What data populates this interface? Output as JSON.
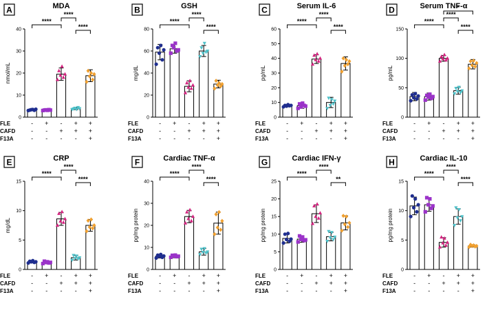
{
  "chart_data": [
    {
      "id": "A",
      "type": "bar",
      "title": "MDA",
      "ylabel": "nmol/mL",
      "ylim": [
        0,
        40
      ],
      "yticks": [
        0,
        10,
        20,
        30,
        40
      ],
      "values": [
        3.3,
        3.2,
        19.5,
        3.9,
        18.8
      ],
      "errors": [
        0.4,
        0.3,
        2.8,
        0.5,
        2.7
      ],
      "points": [
        [
          3.0,
          3.2,
          3.4,
          3.5,
          3.1,
          3.6
        ],
        [
          3.0,
          3.2,
          3.3,
          3.1,
          3.4,
          3.2
        ],
        [
          17,
          21,
          19,
          23,
          18,
          19.5
        ],
        [
          3.5,
          3.8,
          4.1,
          3.6,
          4.4,
          3.9
        ],
        [
          16,
          21,
          18.5,
          20,
          17,
          19.5
        ]
      ],
      "signif": [
        {
          "a": 0,
          "b": 2,
          "label": "****"
        },
        {
          "a": 2,
          "b": 3,
          "label": "****"
        },
        {
          "a": 3,
          "b": 4,
          "label": "****"
        }
      ]
    },
    {
      "id": "B",
      "type": "bar",
      "title": "GSH",
      "ylabel": "mg/dL",
      "ylim": [
        0,
        80
      ],
      "yticks": [
        0,
        20,
        40,
        60,
        80
      ],
      "values": [
        59,
        62,
        28,
        60,
        30
      ],
      "errors": [
        7,
        4,
        5,
        5,
        3.5
      ],
      "points": [
        [
          48,
          63,
          58,
          65,
          52,
          61
        ],
        [
          58,
          65,
          63,
          67,
          60,
          61
        ],
        [
          22,
          31,
          27,
          33,
          26,
          29
        ],
        [
          55,
          63,
          58,
          67,
          59,
          60
        ],
        [
          26,
          33,
          29,
          31,
          28,
          30
        ]
      ],
      "signif": [
        {
          "a": 0,
          "b": 2,
          "label": "****"
        },
        {
          "a": 2,
          "b": 3,
          "label": "****"
        },
        {
          "a": 3,
          "b": 4,
          "label": "****"
        }
      ]
    },
    {
      "id": "C",
      "type": "bar",
      "title": "Serum  IL-6",
      "ylabel": "pg/mL",
      "ylim": [
        0,
        60
      ],
      "yticks": [
        0,
        10,
        20,
        30,
        40,
        50,
        60
      ],
      "values": [
        7.8,
        7.8,
        39.5,
        10,
        36.5
      ],
      "errors": [
        0.8,
        1.8,
        3,
        3.5,
        4.5
      ],
      "points": [
        [
          7,
          8,
          7.5,
          8.5,
          7.8,
          8
        ],
        [
          6,
          9,
          7,
          9.5,
          8,
          7.5
        ],
        [
          36,
          42,
          39,
          43,
          38,
          40
        ],
        [
          6,
          13,
          8,
          12,
          9,
          11
        ],
        [
          31,
          40,
          35,
          39,
          36,
          38
        ]
      ],
      "signif": [
        {
          "a": 0,
          "b": 2,
          "label": "****"
        },
        {
          "a": 2,
          "b": 3,
          "label": "****"
        },
        {
          "a": 3,
          "b": 4,
          "label": "****"
        }
      ]
    },
    {
      "id": "D",
      "type": "bar",
      "title": "Serum TNF-α",
      "ylabel": "pg/mL",
      "ylim": [
        0,
        150
      ],
      "yticks": [
        0,
        50,
        100,
        150
      ],
      "values": [
        35,
        35,
        100,
        45,
        90
      ],
      "errors": [
        7,
        6,
        5,
        6,
        8
      ],
      "points": [
        [
          28,
          38,
          33,
          40,
          31,
          36
        ],
        [
          29,
          37,
          34,
          39,
          32,
          35
        ],
        [
          95,
          103,
          99,
          106,
          97,
          100
        ],
        [
          40,
          49,
          44,
          51,
          42,
          45
        ],
        [
          83,
          95,
          88,
          96,
          86,
          92
        ]
      ],
      "signif": [
        {
          "a": 0,
          "b": 2,
          "label": "****"
        },
        {
          "a": 2,
          "b": 3,
          "label": "****"
        },
        {
          "a": 3,
          "b": 4,
          "label": "****"
        },
        {
          "a": 2,
          "b": 4,
          "label": "*"
        }
      ]
    },
    {
      "id": "E",
      "type": "bar",
      "title": "CRP",
      "ylabel": "mg/dL",
      "ylim": [
        0,
        15
      ],
      "yticks": [
        0,
        5,
        10,
        15
      ],
      "values": [
        1.3,
        1.2,
        8.6,
        2,
        7.5
      ],
      "errors": [
        0.2,
        0.25,
        1.1,
        0.4,
        1
      ],
      "points": [
        [
          1.1,
          1.4,
          1.3,
          1.5,
          1.2,
          1.3
        ],
        [
          1.0,
          1.4,
          1.2,
          1.3,
          1.1,
          1.2
        ],
        [
          7.5,
          9.5,
          8.2,
          9.8,
          8.0,
          8.6
        ],
        [
          1.6,
          2.4,
          1.9,
          2.3,
          1.8,
          2.0
        ],
        [
          6.5,
          8.3,
          7.2,
          8.5,
          7.0,
          7.5
        ]
      ],
      "signif": [
        {
          "a": 0,
          "b": 2,
          "label": "****"
        },
        {
          "a": 2,
          "b": 3,
          "label": "****"
        },
        {
          "a": 3,
          "b": 4,
          "label": "****"
        }
      ]
    },
    {
      "id": "F",
      "type": "bar",
      "title": "Cardiac TNF-α",
      "ylabel": "pg/mg protein",
      "ylim": [
        0,
        40
      ],
      "yticks": [
        0,
        10,
        20,
        30,
        40
      ],
      "values": [
        6,
        6,
        24,
        8,
        21
      ],
      "errors": [
        0.8,
        0.7,
        2.8,
        1.5,
        5
      ],
      "points": [
        [
          5.2,
          6.5,
          6,
          6.8,
          5.5,
          6.1
        ],
        [
          5.5,
          6.4,
          6.1,
          6.5,
          5.8,
          6
        ],
        [
          21,
          26,
          23,
          27,
          22,
          24
        ],
        [
          6.8,
          9.2,
          7.8,
          9.5,
          7.5,
          8
        ],
        [
          16,
          25,
          19,
          26,
          18,
          22
        ]
      ],
      "signif": [
        {
          "a": 0,
          "b": 2,
          "label": "****"
        },
        {
          "a": 2,
          "b": 3,
          "label": "****"
        },
        {
          "a": 3,
          "b": 4,
          "label": "****"
        }
      ]
    },
    {
      "id": "G",
      "type": "bar",
      "title": "Cardiac IFN-γ",
      "ylabel": "pg/mg protein",
      "ylim": [
        0,
        25
      ],
      "yticks": [
        0,
        5,
        10,
        15,
        20,
        25
      ],
      "values": [
        8.8,
        8.6,
        15.8,
        9.3,
        13.2
      ],
      "errors": [
        1.3,
        0.9,
        2.5,
        1.2,
        2
      ],
      "points": [
        [
          7.5,
          10,
          8.5,
          10.2,
          8,
          8.6
        ],
        [
          7.8,
          9.5,
          8.5,
          9.2,
          8.2,
          8.4
        ],
        [
          13,
          18,
          15,
          18.5,
          14.5,
          16
        ],
        [
          8,
          10.8,
          9,
          10.5,
          8.5,
          9.2
        ],
        [
          11,
          15.2,
          12.8,
          15,
          12,
          13.2
        ]
      ],
      "signif": [
        {
          "a": 0,
          "b": 2,
          "label": "****"
        },
        {
          "a": 2,
          "b": 3,
          "label": "****"
        },
        {
          "a": 3,
          "b": 4,
          "label": "**"
        }
      ]
    },
    {
      "id": "H",
      "type": "bar",
      "title": "Cardiac IL-10",
      "ylabel": "pg/mg protein",
      "ylim": [
        0,
        15
      ],
      "yticks": [
        0,
        5,
        10,
        15
      ],
      "values": [
        10.8,
        11,
        4.6,
        9,
        4
      ],
      "errors": [
        1.5,
        1.1,
        0.8,
        1.3,
        0.2
      ],
      "points": [
        [
          9,
          12.5,
          10.5,
          12,
          9.8,
          11
        ],
        [
          9.8,
          12.2,
          11,
          12,
          10.4,
          10.8
        ],
        [
          3.8,
          5.5,
          4.5,
          5.3,
          4.1,
          4.6
        ],
        [
          7.5,
          10.5,
          8.8,
          10.2,
          8.3,
          9
        ],
        [
          3.8,
          4.2,
          4,
          4.1,
          3.9,
          4
        ]
      ],
      "signif": [
        {
          "a": 0,
          "b": 2,
          "label": "****"
        },
        {
          "a": 2,
          "b": 3,
          "label": "****"
        },
        {
          "a": 3,
          "b": 4,
          "label": "****"
        }
      ]
    }
  ],
  "groups": {
    "row_labels": [
      "FLE",
      "CAFD",
      "F13A"
    ],
    "rows": [
      [
        "-",
        "+",
        "-",
        "+",
        "+"
      ],
      [
        "-",
        "-",
        "+",
        "+",
        "+"
      ],
      [
        "-",
        "-",
        "-",
        "-",
        "+"
      ]
    ]
  },
  "colors": {
    "group_points": [
      "#1f2e8f",
      "#9b33c9",
      "#d4237f",
      "#4fc1c9",
      "#f0a030"
    ],
    "bar_fill": "#ffffff",
    "stroke": "#000000"
  }
}
